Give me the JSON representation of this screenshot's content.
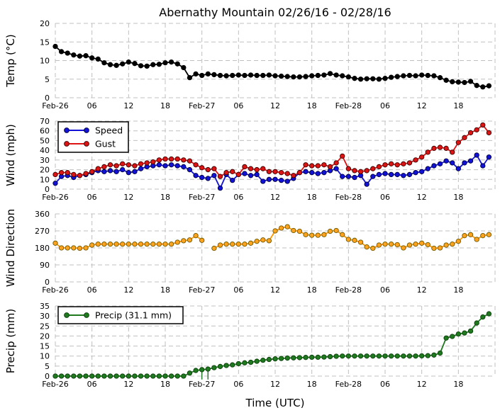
{
  "title": "Abernathy Mountain 02/26/16 - 02/28/16",
  "xlabel": "Time (UTC)",
  "colors": {
    "grid": "#c0c0c0",
    "text": "#000000",
    "temp": "#000000",
    "speed": "#1212d6",
    "gust": "#dc1414",
    "direction_fill": "#ffa21e",
    "direction_line": "#ff9900",
    "direction_edge": "#6b5900",
    "precip": "#1f7a1f",
    "legend_border": "#000000",
    "legend_bg": "#ffffff"
  },
  "chart_data": {
    "type": "line",
    "title": "Abernathy Mountain 02/26/16 - 02/28/16",
    "xlabel": "Time (UTC)",
    "x_interval_hours": 1,
    "x_range_hours": [
      0,
      72
    ],
    "x_ticks": {
      "hours": [
        0,
        6,
        12,
        18,
        24,
        30,
        36,
        42,
        48,
        54,
        60,
        66
      ],
      "labels": [
        "Feb-26",
        "06",
        "12",
        "18",
        "Feb-27",
        "06",
        "12",
        "18",
        "Feb-28",
        "06",
        "12",
        "18"
      ]
    },
    "subplots": [
      {
        "name": "temperature",
        "ylabel": "Temp (°C)",
        "ylim": [
          0,
          20
        ],
        "yticks": [
          0,
          5,
          10,
          15,
          20
        ],
        "series": [
          {
            "name": "Temp",
            "color": "#000000",
            "edge": "#000000",
            "values": [
              13.8,
              12.4,
              12.0,
              11.5,
              11.2,
              11.3,
              10.7,
              10.4,
              9.4,
              8.9,
              8.7,
              9.1,
              9.6,
              9.2,
              8.6,
              8.5,
              8.9,
              9.0,
              9.4,
              9.6,
              9.1,
              8.1,
              5.4,
              6.4,
              6.0,
              6.4,
              6.2,
              6.0,
              5.9,
              6.0,
              6.1,
              6.0,
              6.1,
              6.0,
              6.0,
              6.1,
              5.9,
              5.8,
              5.7,
              5.6,
              5.6,
              5.7,
              5.9,
              6.0,
              6.1,
              6.5,
              6.1,
              5.9,
              5.6,
              5.2,
              5.0,
              5.1,
              5.1,
              5.0,
              5.2,
              5.5,
              5.7,
              5.9,
              6.0,
              5.9,
              6.1,
              6.0,
              5.9,
              5.4,
              4.7,
              4.3,
              4.2,
              4.1,
              4.4,
              3.3,
              2.9,
              3.2
            ]
          }
        ]
      },
      {
        "name": "wind",
        "ylabel": "Wind (mph)",
        "ylim": [
          0,
          70
        ],
        "yticks": [
          0,
          10,
          20,
          30,
          40,
          50,
          60,
          70
        ],
        "legend": [
          "Speed",
          "Gust"
        ],
        "series": [
          {
            "name": "Speed",
            "color": "#1212d6",
            "edge": "#00003c",
            "values": [
              6,
              13,
              14,
              12,
              14,
              15,
              17,
              19,
              18,
              19,
              18,
              20,
              17,
              18,
              21,
              23,
              24,
              25,
              24,
              25,
              24,
              23,
              20,
              14,
              12,
              11,
              14,
              1,
              15,
              9,
              15,
              16,
              14,
              15,
              8,
              10,
              10,
              9,
              8,
              11,
              17,
              18,
              17,
              16,
              17,
              19,
              21,
              13,
              13,
              12,
              14,
              5,
              13,
              15,
              16,
              15,
              15,
              14,
              15,
              17,
              18,
              21,
              24,
              26,
              29,
              27,
              21,
              27,
              29,
              35,
              24,
              33
            ]
          },
          {
            "name": "Gust",
            "color": "#dc1414",
            "edge": "#3c0000",
            "values": [
              15,
              17,
              17,
              15,
              14,
              16,
              18,
              21,
              23,
              25,
              24,
              26,
              25,
              24,
              26,
              27,
              28,
              30,
              31,
              31,
              31,
              30,
              29,
              25,
              22,
              20,
              21,
              13,
              17,
              18,
              15,
              23,
              21,
              20,
              21,
              18,
              18,
              17,
              16,
              14,
              17,
              25,
              24,
              24,
              25,
              23,
              27,
              34,
              21,
              19,
              18,
              19,
              21,
              23,
              25,
              26,
              25,
              26,
              27,
              30,
              33,
              38,
              42,
              43,
              42,
              38,
              48,
              53,
              58,
              61,
              66,
              58
            ]
          }
        ]
      },
      {
        "name": "wind_direction",
        "ylabel": "Wind Direction",
        "ylim": [
          0,
          360
        ],
        "yticks": [
          0,
          90,
          180,
          270,
          360
        ],
        "series": [
          {
            "name": "Direction",
            "color": "#ffa21e",
            "line": "#ff9900",
            "edge": "#6b5900",
            "values": [
              205,
              180,
              180,
              180,
              178,
              180,
              195,
              200,
              200,
              200,
              200,
              200,
              200,
              200,
              200,
              200,
              200,
              200,
              200,
              200,
              210,
              218,
              222,
              245,
              220,
              null,
              178,
              195,
              200,
              200,
              200,
              200,
              205,
              215,
              222,
              218,
              270,
              285,
              292,
              272,
              268,
              250,
              247,
              247,
              250,
              268,
              272,
              250,
              225,
              220,
              210,
              185,
              178,
              195,
              200,
              200,
              197,
              180,
              195,
              200,
              205,
              197,
              178,
              180,
              195,
              200,
              215,
              245,
              250,
              225,
              245,
              250
            ]
          }
        ]
      },
      {
        "name": "precipitation",
        "ylabel": "Precip (mm)",
        "ylim": [
          0,
          35
        ],
        "yticks": [
          0,
          5,
          10,
          15,
          20,
          25,
          30,
          35
        ],
        "legend": [
          "Precip (31.1 mm)"
        ],
        "total_mm": 31.1,
        "event_bars": [
          {
            "hour": 24,
            "from": -1.7,
            "to": 3.2
          },
          {
            "hour": 25,
            "from": -1.7,
            "to": 3.5
          }
        ],
        "series": [
          {
            "name": "Precip (31.1 mm)",
            "color": "#1f7a1f",
            "edge": "#0a3d0a",
            "values": [
              0,
              0,
              0,
              0,
              0,
              0,
              0,
              0,
              0,
              0,
              0,
              0,
              0,
              0,
              0,
              0,
              0,
              0,
              0,
              0,
              0,
              0,
              1.5,
              2.8,
              3.2,
              3.5,
              4.2,
              4.8,
              5.3,
              5.6,
              6.2,
              6.6,
              6.9,
              7.4,
              7.9,
              8.3,
              8.6,
              8.8,
              9.0,
              9.1,
              9.2,
              9.3,
              9.4,
              9.4,
              9.5,
              9.7,
              9.9,
              10.0,
              10.0,
              10.0,
              10.0,
              10.0,
              10.0,
              10.0,
              10.0,
              10.0,
              10.0,
              10.0,
              10.0,
              10.0,
              10.1,
              10.2,
              10.5,
              11.5,
              19.0,
              19.8,
              21.0,
              21.5,
              22.5,
              26.5,
              29.5,
              31.1
            ]
          }
        ]
      }
    ]
  }
}
